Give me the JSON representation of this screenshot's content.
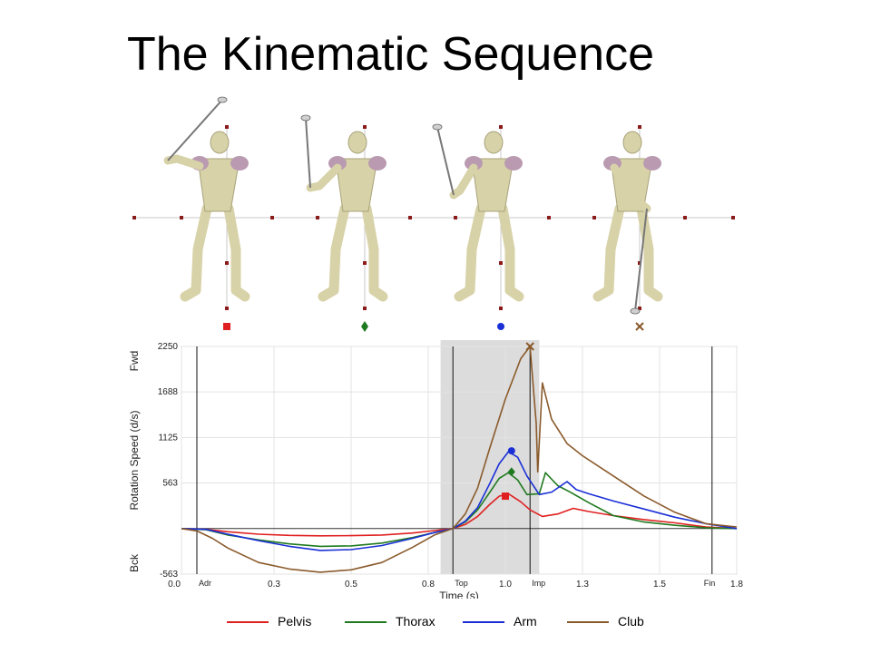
{
  "slide": {
    "title": "The Kinematic Sequence"
  },
  "figures": {
    "markers": [
      {
        "name": "Pelvis",
        "shape": "square",
        "color": "#e02020"
      },
      {
        "name": "Thorax",
        "shape": "diamond",
        "color": "#1f7a1f"
      },
      {
        "name": "Arm",
        "shape": "circle",
        "color": "#1a2fd6"
      },
      {
        "name": "Club",
        "shape": "x",
        "color": "#8a5a2b"
      }
    ]
  },
  "chart_data": {
    "type": "line",
    "xlabel": "Time (s)",
    "ylabel": "Rotation Speed (d/s)",
    "y_dir_top": "Fwd",
    "y_dir_bottom": "Bck",
    "xlim": [
      0.0,
      1.8
    ],
    "ylim": [
      -563,
      2250
    ],
    "x_ticks": [
      "0.0",
      "0.3",
      "0.5",
      "0.8",
      "1.0",
      "1.3",
      "1.5",
      "1.8"
    ],
    "x_tick_values": [
      0.0,
      0.3,
      0.55,
      0.8,
      1.05,
      1.3,
      1.55,
      1.8
    ],
    "y_ticks": [
      "2250",
      "1688",
      "1125",
      "563",
      "-563"
    ],
    "y_tick_values": [
      2250,
      1688,
      1125,
      563,
      -563
    ],
    "events": [
      {
        "label": "Adr",
        "x": 0.05
      },
      {
        "label": "Top",
        "x": 0.88
      },
      {
        "label": "Imp",
        "x": 1.13
      },
      {
        "label": "Fin",
        "x": 1.72
      }
    ],
    "highlight_range": [
      0.84,
      1.16
    ],
    "grid": true,
    "legend_position": "bottom",
    "series": [
      {
        "name": "Pelvis",
        "color": "#e02020",
        "x": [
          0.0,
          0.08,
          0.15,
          0.25,
          0.35,
          0.45,
          0.55,
          0.65,
          0.75,
          0.82,
          0.88,
          0.92,
          0.96,
          1.0,
          1.03,
          1.06,
          1.1,
          1.13,
          1.17,
          1.22,
          1.27,
          1.32,
          1.4,
          1.5,
          1.6,
          1.7,
          1.8
        ],
        "y": [
          0,
          -10,
          -40,
          -70,
          -85,
          -90,
          -88,
          -80,
          -55,
          -25,
          0,
          50,
          150,
          300,
          400,
          430,
          330,
          230,
          150,
          180,
          250,
          210,
          160,
          110,
          70,
          20,
          0
        ],
        "peak": {
          "x": 1.05,
          "y": 400
        }
      },
      {
        "name": "Thorax",
        "color": "#1f7a1f",
        "x": [
          0.0,
          0.08,
          0.15,
          0.25,
          0.35,
          0.45,
          0.55,
          0.65,
          0.75,
          0.82,
          0.88,
          0.92,
          0.96,
          1.0,
          1.03,
          1.06,
          1.09,
          1.12,
          1.16,
          1.18,
          1.22,
          1.26,
          1.32,
          1.4,
          1.5,
          1.6,
          1.7,
          1.8
        ],
        "y": [
          0,
          -15,
          -80,
          -140,
          -190,
          -220,
          -215,
          -180,
          -110,
          -50,
          0,
          80,
          230,
          450,
          620,
          690,
          600,
          420,
          430,
          690,
          530,
          450,
          320,
          160,
          80,
          40,
          10,
          0
        ],
        "peak": {
          "x": 1.07,
          "y": 700
        }
      },
      {
        "name": "Arm",
        "color": "#1a2fd6",
        "x": [
          0.0,
          0.08,
          0.15,
          0.25,
          0.35,
          0.45,
          0.55,
          0.65,
          0.75,
          0.82,
          0.88,
          0.92,
          0.96,
          1.0,
          1.03,
          1.06,
          1.09,
          1.12,
          1.16,
          1.2,
          1.25,
          1.28,
          1.32,
          1.4,
          1.5,
          1.6,
          1.7,
          1.8
        ],
        "y": [
          0,
          -10,
          -70,
          -150,
          -220,
          -270,
          -260,
          -210,
          -120,
          -50,
          0,
          90,
          260,
          560,
          800,
          950,
          880,
          650,
          420,
          450,
          580,
          480,
          430,
          340,
          240,
          140,
          60,
          0
        ],
        "peak": {
          "x": 1.07,
          "y": 960
        }
      },
      {
        "name": "Club",
        "color": "#8a5a2b",
        "x": [
          0.0,
          0.05,
          0.1,
          0.15,
          0.25,
          0.35,
          0.45,
          0.55,
          0.65,
          0.75,
          0.82,
          0.88,
          0.92,
          0.96,
          1.0,
          1.05,
          1.1,
          1.13,
          1.15,
          1.155,
          1.17,
          1.2,
          1.25,
          1.3,
          1.4,
          1.5,
          1.6,
          1.7,
          1.8
        ],
        "y": [
          0,
          -30,
          -120,
          -240,
          -420,
          -500,
          -540,
          -510,
          -420,
          -230,
          -80,
          0,
          180,
          500,
          1000,
          1600,
          2100,
          2250,
          1300,
          700,
          1800,
          1350,
          1050,
          900,
          650,
          400,
          200,
          60,
          20
        ],
        "peak": {
          "x": 1.13,
          "y": 2250
        }
      }
    ]
  }
}
